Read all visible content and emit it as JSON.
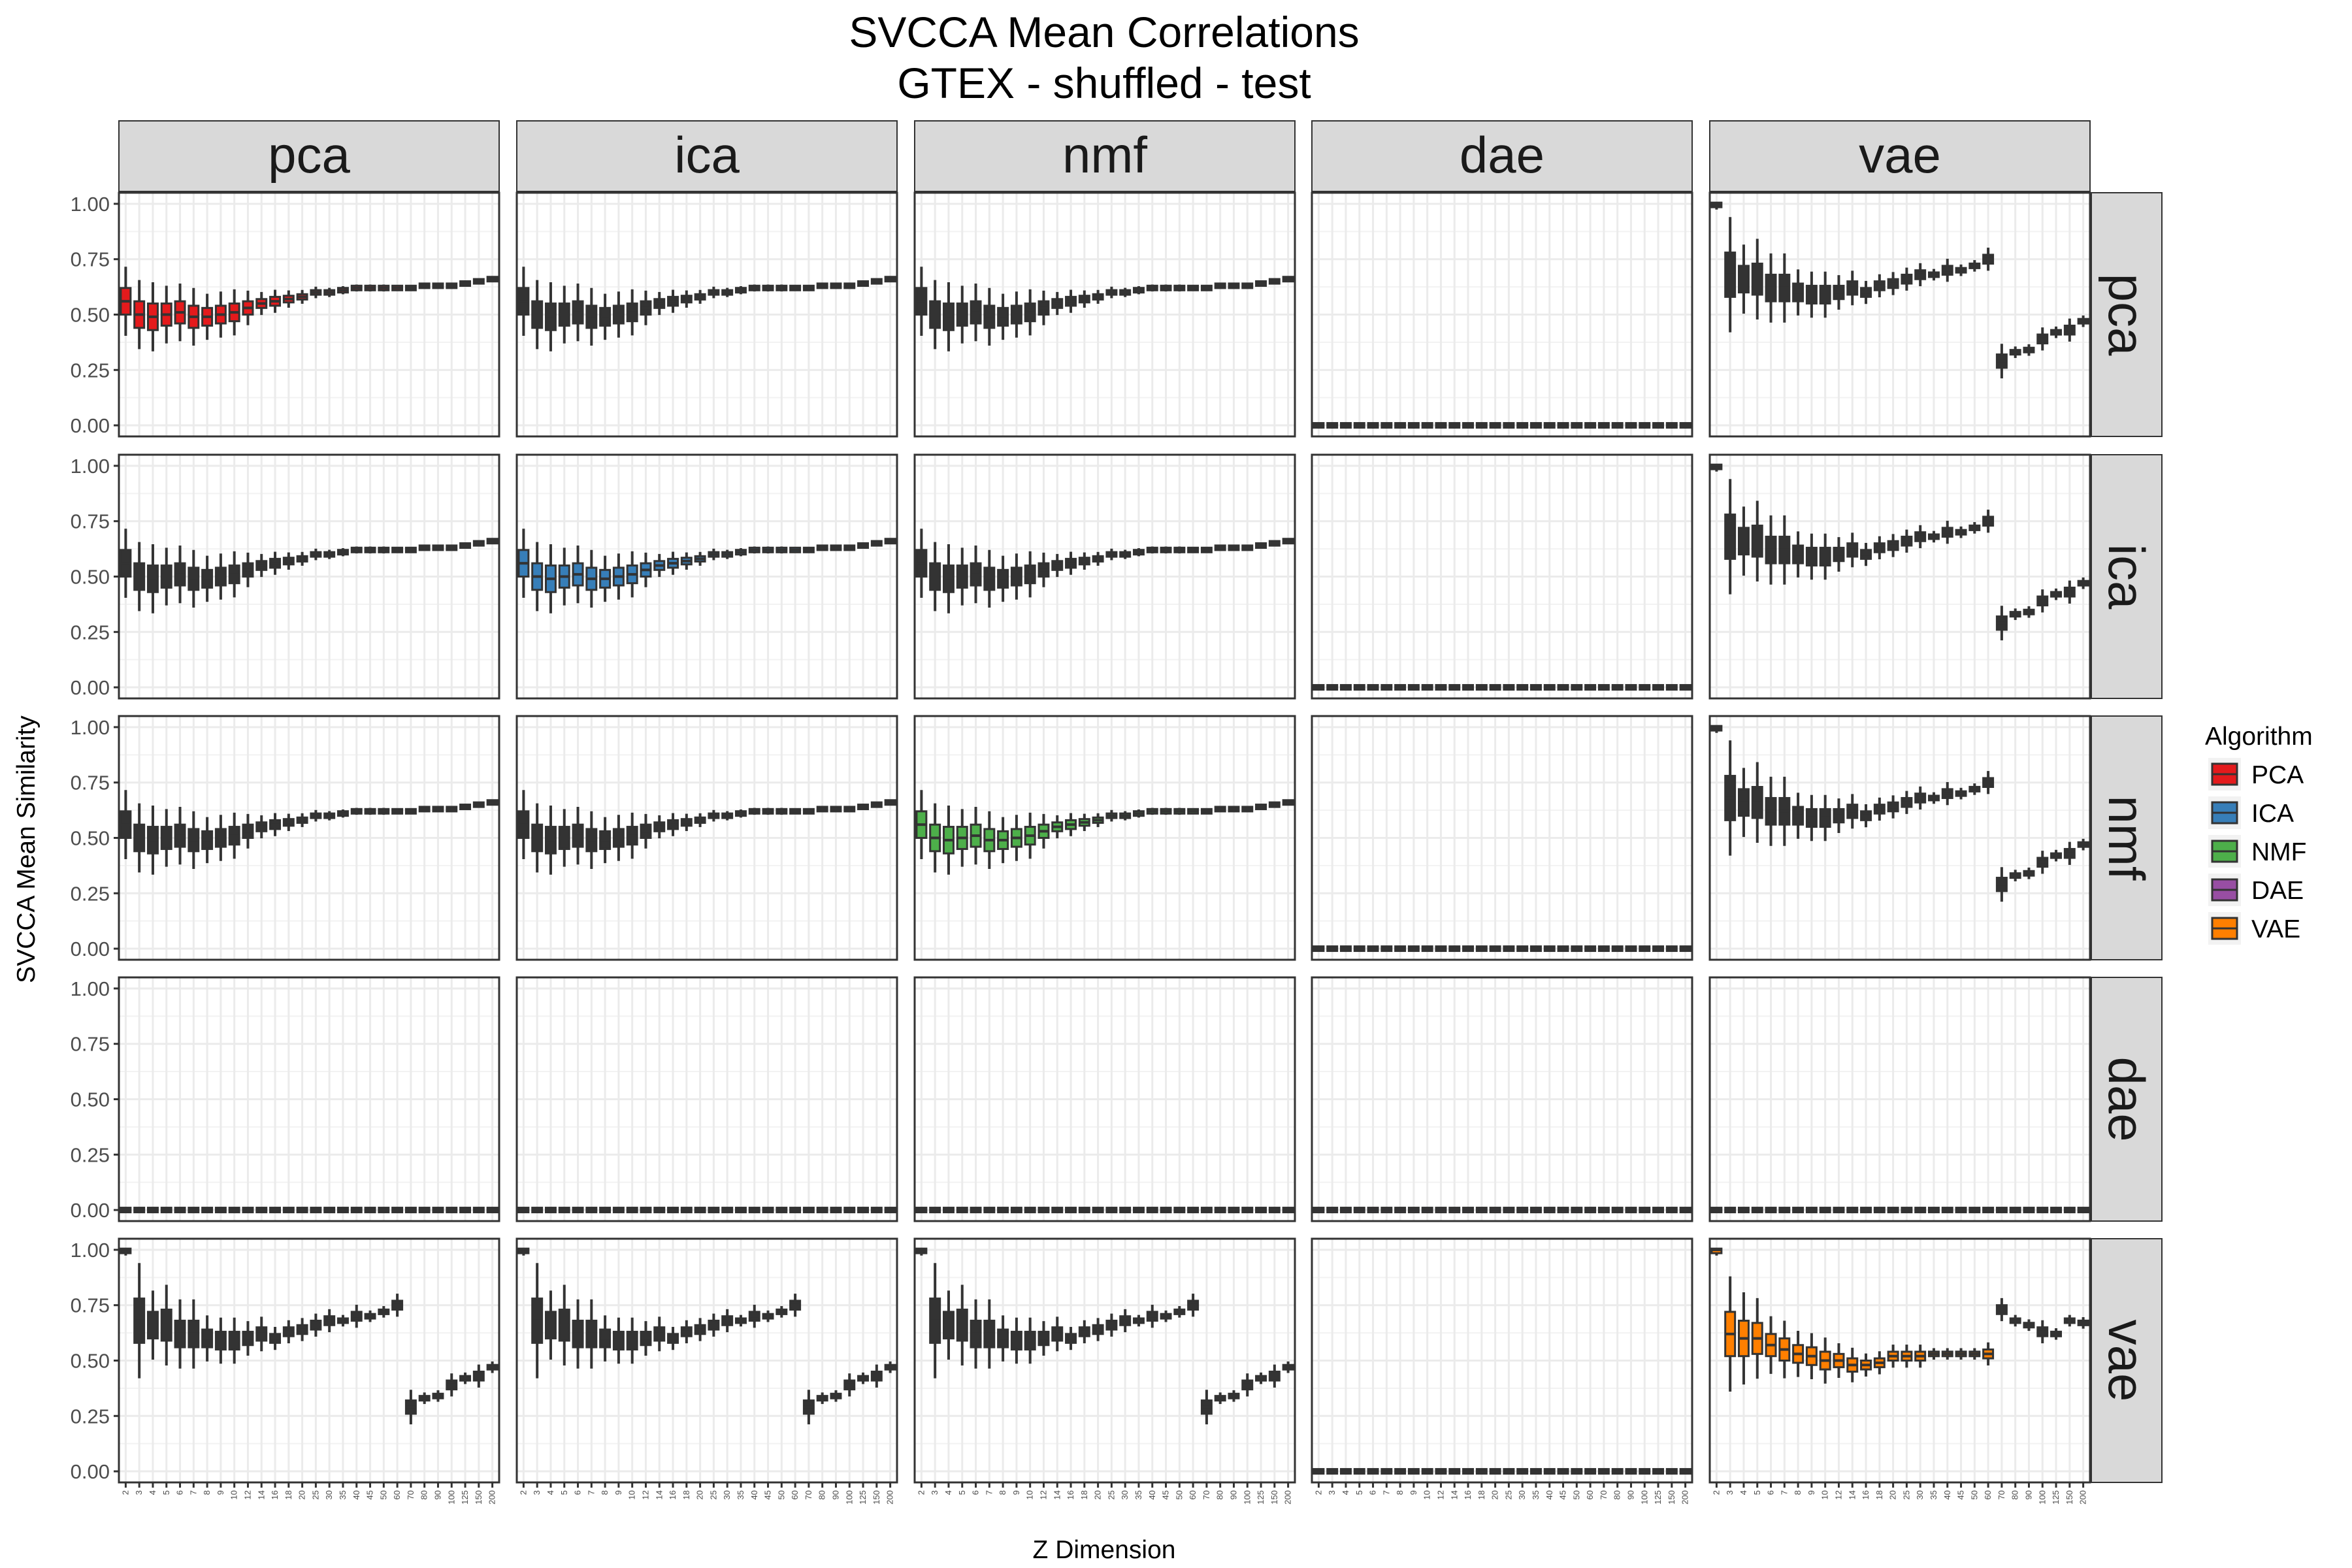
{
  "chart_data": {
    "type": "boxplot-facet-grid",
    "title_lines": [
      "SVCCA Mean Correlations",
      "GTEX - shuffled - test"
    ],
    "xlabel": "Z Dimension",
    "ylabel": "SVCCA Mean Similarity",
    "ylim": [
      0,
      1
    ],
    "y_ticks": [
      "0.00",
      "0.25",
      "0.50",
      "0.75",
      "1.00"
    ],
    "x_categories": [
      "2",
      "3",
      "4",
      "5",
      "6",
      "7",
      "8",
      "9",
      "10",
      "12",
      "14",
      "16",
      "18",
      "20",
      "25",
      "30",
      "35",
      "40",
      "45",
      "50",
      "60",
      "70",
      "80",
      "90",
      "100",
      "125",
      "150",
      "200"
    ],
    "column_facets": [
      "pca",
      "ica",
      "nmf",
      "dae",
      "vae"
    ],
    "row_facets": [
      "pca",
      "ica",
      "nmf",
      "dae",
      "vae"
    ],
    "grid": true,
    "legend": {
      "title": "Algorithm",
      "position": "right",
      "entries": [
        {
          "label": "PCA",
          "color": "#E41A1C"
        },
        {
          "label": "ICA",
          "color": "#377EB8"
        },
        {
          "label": "NMF",
          "color": "#4DAF4A"
        },
        {
          "label": "DAE",
          "color": "#984EA3"
        },
        {
          "label": "VAE",
          "color": "#FF7F00"
        }
      ]
    },
    "profiles": {
      "linear": {
        "medians": [
          0.56,
          0.5,
          0.49,
          0.5,
          0.51,
          0.49,
          0.49,
          0.5,
          0.51,
          0.53,
          0.55,
          0.56,
          0.57,
          0.58,
          0.6,
          0.6,
          0.61,
          0.62,
          0.62,
          0.62,
          0.62,
          0.62,
          0.63,
          0.63,
          0.63,
          0.64,
          0.65,
          0.66
        ],
        "spreads": [
          0.06,
          0.06,
          0.06,
          0.05,
          0.05,
          0.05,
          0.04,
          0.04,
          0.04,
          0.03,
          0.02,
          0.02,
          0.015,
          0.012,
          0.01,
          0.008,
          0.007,
          0.006,
          0.006,
          0.006,
          0.005,
          0.005,
          0.005,
          0.005,
          0.005,
          0.005,
          0.005,
          0.005
        ]
      },
      "vae_self": {
        "medians": [
          1.0,
          0.68,
          0.66,
          0.66,
          0.62,
          0.62,
          0.6,
          0.59,
          0.59,
          0.6,
          0.62,
          0.6,
          0.63,
          0.64,
          0.66,
          0.68,
          0.68,
          0.7,
          0.7,
          0.72,
          0.75,
          0.29,
          0.33,
          0.34,
          0.39,
          0.42,
          0.43,
          0.47
        ],
        "spreads": [
          0.01,
          0.1,
          0.06,
          0.07,
          0.06,
          0.06,
          0.04,
          0.04,
          0.04,
          0.03,
          0.03,
          0.02,
          0.02,
          0.02,
          0.02,
          0.02,
          0.01,
          0.02,
          0.01,
          0.01,
          0.02,
          0.03,
          0.01,
          0.01,
          0.02,
          0.01,
          0.02,
          0.01
        ]
      },
      "vae_vae": {
        "medians": [
          1.0,
          0.62,
          0.6,
          0.6,
          0.57,
          0.55,
          0.53,
          0.52,
          0.5,
          0.5,
          0.48,
          0.48,
          0.49,
          0.52,
          0.52,
          0.52,
          0.53,
          0.53,
          0.53,
          0.53,
          0.53,
          0.73,
          0.68,
          0.66,
          0.63,
          0.62,
          0.68,
          0.67
        ],
        "spreads": [
          0.01,
          0.1,
          0.08,
          0.07,
          0.05,
          0.05,
          0.04,
          0.04,
          0.04,
          0.03,
          0.03,
          0.02,
          0.02,
          0.02,
          0.02,
          0.02,
          0.01,
          0.01,
          0.01,
          0.01,
          0.02,
          0.02,
          0.01,
          0.01,
          0.02,
          0.01,
          0.01,
          0.01
        ]
      },
      "zero": {
        "medians": [
          0,
          0,
          0,
          0,
          0,
          0,
          0,
          0,
          0,
          0,
          0,
          0,
          0,
          0,
          0,
          0,
          0,
          0,
          0,
          0,
          0,
          0,
          0,
          0,
          0,
          0,
          0,
          0
        ],
        "spreads": [
          0,
          0,
          0,
          0,
          0,
          0,
          0,
          0,
          0,
          0,
          0,
          0,
          0,
          0,
          0,
          0,
          0,
          0,
          0,
          0,
          0,
          0,
          0,
          0,
          0,
          0,
          0,
          0
        ]
      }
    },
    "panels": [
      [
        "linear",
        "linear",
        "linear",
        "zero",
        "vae_self"
      ],
      [
        "linear",
        "linear",
        "linear",
        "zero",
        "vae_self"
      ],
      [
        "linear",
        "linear",
        "linear",
        "zero",
        "vae_self"
      ],
      [
        "zero",
        "zero",
        "zero",
        "zero",
        "zero"
      ],
      [
        "vae_self",
        "vae_self",
        "vae_self",
        "zero",
        "vae_vae"
      ]
    ]
  }
}
